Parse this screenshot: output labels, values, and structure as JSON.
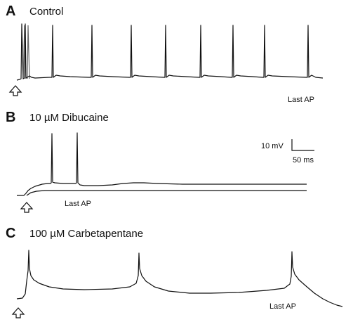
{
  "panels": [
    {
      "letter": "A",
      "title": "Control",
      "note": "Last AP"
    },
    {
      "letter": "B",
      "title": "10 µM Dibucaine",
      "note": "Last AP"
    },
    {
      "letter": "C",
      "title": "100 µM Carbetapentane",
      "note": "Last AP"
    }
  ],
  "scale_bar": {
    "voltage": "10 mV",
    "time": "50 ms"
  },
  "icons": {
    "stimulus": "stimulus-arrow-icon"
  }
}
